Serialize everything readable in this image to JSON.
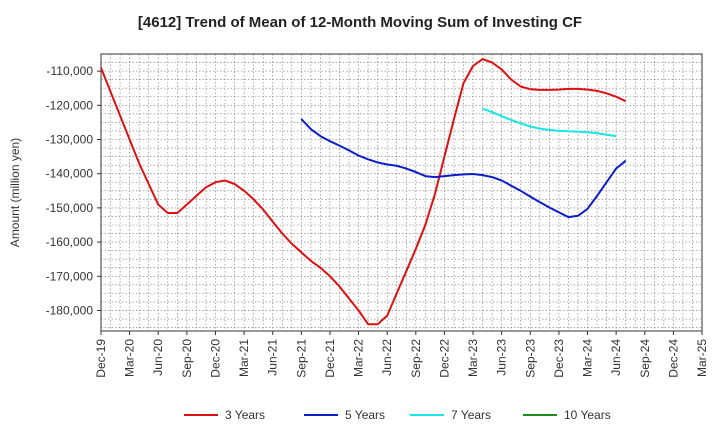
{
  "chart_data": {
    "type": "line",
    "title": "[4612]  Trend of Mean of 12-Month Moving Sum of Investing CF",
    "ylabel": "Amount (million yen)",
    "xlabel": "",
    "ylim": [
      -186000,
      -105000
    ],
    "yticks": [
      -110000,
      -120000,
      -130000,
      -140000,
      -150000,
      -160000,
      -170000,
      -180000
    ],
    "ytick_labels": [
      "-110,000",
      "-120,000",
      "-130,000",
      "-140,000",
      "-150,000",
      "-160,000",
      "-170,000",
      "-180,000"
    ],
    "x_range": [
      "2019-12",
      "2025-03"
    ],
    "x_ticks": [
      "2019-12",
      "2020-03",
      "2020-06",
      "2020-09",
      "2020-12",
      "2021-03",
      "2021-06",
      "2021-09",
      "2021-12",
      "2022-03",
      "2022-06",
      "2022-09",
      "2022-12",
      "2023-03",
      "2023-06",
      "2023-09",
      "2023-12",
      "2024-03",
      "2024-06",
      "2024-09",
      "2024-12",
      "2025-03"
    ],
    "x_tick_labels": [
      "Dec-19",
      "Mar-20",
      "Jun-20",
      "Sep-20",
      "Dec-20",
      "Mar-21",
      "Jun-21",
      "Sep-21",
      "Dec-21",
      "Mar-22",
      "Jun-22",
      "Sep-22",
      "Dec-22",
      "Mar-23",
      "Jun-23",
      "Sep-23",
      "Dec-23",
      "Mar-24",
      "Jun-24",
      "Sep-24",
      "Dec-24",
      "Mar-25"
    ],
    "grid": true,
    "legend_position": "bottom",
    "series": [
      {
        "name": "3 Years",
        "color": "#dd1111",
        "points": [
          [
            "2019-12",
            -109000
          ],
          [
            "2020-01",
            -116000
          ],
          [
            "2020-02",
            -123000
          ],
          [
            "2020-03",
            -130000
          ],
          [
            "2020-04",
            -137000
          ],
          [
            "2020-05",
            -143000
          ],
          [
            "2020-06",
            -149000
          ],
          [
            "2020-07",
            -151500
          ],
          [
            "2020-08",
            -151500
          ],
          [
            "2020-09",
            -149000
          ],
          [
            "2020-10",
            -146500
          ],
          [
            "2020-11",
            -144000
          ],
          [
            "2020-12",
            -142500
          ],
          [
            "2021-01",
            -142000
          ],
          [
            "2021-02",
            -143000
          ],
          [
            "2021-03",
            -145000
          ],
          [
            "2021-04",
            -147500
          ],
          [
            "2021-05",
            -150500
          ],
          [
            "2021-06",
            -154000
          ],
          [
            "2021-07",
            -157500
          ],
          [
            "2021-08",
            -160500
          ],
          [
            "2021-09",
            -163000
          ],
          [
            "2021-10",
            -165500
          ],
          [
            "2021-11",
            -167500
          ],
          [
            "2021-12",
            -170000
          ],
          [
            "2022-01",
            -173000
          ],
          [
            "2022-02",
            -176500
          ],
          [
            "2022-03",
            -180000
          ],
          [
            "2022-04",
            -184000
          ],
          [
            "2022-05",
            -184000
          ],
          [
            "2022-06",
            -181500
          ],
          [
            "2022-07",
            -175000
          ],
          [
            "2022-08",
            -168500
          ],
          [
            "2022-09",
            -162000
          ],
          [
            "2022-10",
            -155000
          ],
          [
            "2022-11",
            -146000
          ],
          [
            "2022-12",
            -135000
          ],
          [
            "2023-01",
            -124000
          ],
          [
            "2023-02",
            -113500
          ],
          [
            "2023-03",
            -108500
          ],
          [
            "2023-04",
            -106500
          ],
          [
            "2023-05",
            -107500
          ],
          [
            "2023-06",
            -109500
          ],
          [
            "2023-07",
            -112500
          ],
          [
            "2023-08",
            -114500
          ],
          [
            "2023-09",
            -115300
          ],
          [
            "2023-10",
            -115500
          ],
          [
            "2023-11",
            -115500
          ],
          [
            "2023-12",
            -115400
          ],
          [
            "2024-01",
            -115200
          ],
          [
            "2024-02",
            -115200
          ],
          [
            "2024-03",
            -115400
          ],
          [
            "2024-04",
            -115800
          ],
          [
            "2024-05",
            -116500
          ],
          [
            "2024-06",
            -117500
          ],
          [
            "2024-07",
            -118800
          ]
        ]
      },
      {
        "name": "5 Years",
        "color": "#0d1ec8",
        "points": [
          [
            "2021-09",
            -124000
          ],
          [
            "2021-10",
            -127000
          ],
          [
            "2021-11",
            -129000
          ],
          [
            "2021-12",
            -130500
          ],
          [
            "2022-01",
            -131800
          ],
          [
            "2022-02",
            -133200
          ],
          [
            "2022-03",
            -134700
          ],
          [
            "2022-04",
            -135800
          ],
          [
            "2022-05",
            -136700
          ],
          [
            "2022-06",
            -137300
          ],
          [
            "2022-07",
            -137700
          ],
          [
            "2022-08",
            -138500
          ],
          [
            "2022-09",
            -139500
          ],
          [
            "2022-10",
            -140700
          ],
          [
            "2022-11",
            -141000
          ],
          [
            "2022-12",
            -140700
          ],
          [
            "2023-01",
            -140400
          ],
          [
            "2023-02",
            -140200
          ],
          [
            "2023-03",
            -140100
          ],
          [
            "2023-04",
            -140400
          ],
          [
            "2023-05",
            -141000
          ],
          [
            "2023-06",
            -142000
          ],
          [
            "2023-07",
            -143500
          ],
          [
            "2023-08",
            -145000
          ],
          [
            "2023-09",
            -146700
          ],
          [
            "2023-10",
            -148300
          ],
          [
            "2023-11",
            -149900
          ],
          [
            "2023-12",
            -151300
          ],
          [
            "2024-01",
            -152700
          ],
          [
            "2024-02",
            -152300
          ],
          [
            "2024-03",
            -150300
          ],
          [
            "2024-04",
            -146500
          ],
          [
            "2024-05",
            -142500
          ],
          [
            "2024-06",
            -138500
          ],
          [
            "2024-07",
            -136200
          ]
        ]
      },
      {
        "name": "7 Years",
        "color": "#19e6e6",
        "points": [
          [
            "2023-04",
            -121000
          ],
          [
            "2023-05",
            -122000
          ],
          [
            "2023-06",
            -123200
          ],
          [
            "2023-07",
            -124300
          ],
          [
            "2023-08",
            -125300
          ],
          [
            "2023-09",
            -126200
          ],
          [
            "2023-10",
            -126800
          ],
          [
            "2023-11",
            -127200
          ],
          [
            "2023-12",
            -127500
          ],
          [
            "2024-01",
            -127600
          ],
          [
            "2024-02",
            -127700
          ],
          [
            "2024-03",
            -127900
          ],
          [
            "2024-04",
            -128200
          ],
          [
            "2024-05",
            -128600
          ],
          [
            "2024-06",
            -129000
          ]
        ]
      },
      {
        "name": "10 Years",
        "color": "#1a8c1a",
        "points": []
      }
    ]
  }
}
